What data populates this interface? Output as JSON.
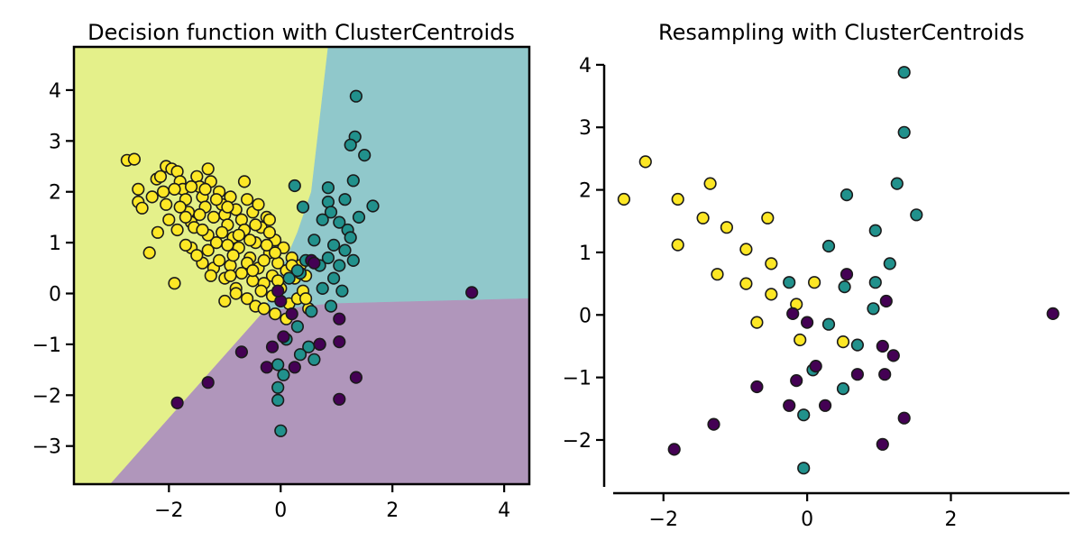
{
  "colors": {
    "class_yellow": "#fde725",
    "class_teal": "#21918c",
    "class_purple": "#440154",
    "region_yellow": "#e4f08a",
    "region_teal": "#90c8cb",
    "region_purple": "#b096bb",
    "edge": "#1a1a1a"
  },
  "chart_data": [
    {
      "type": "scatter",
      "title": "Decision function with ClusterCentroids",
      "xlim": [
        -3.7,
        4.45
      ],
      "ylim": [
        -3.75,
        4.85
      ],
      "xticks": [
        -2,
        0,
        2,
        4
      ],
      "yticks": [
        -3,
        -2,
        -1,
        0,
        1,
        2,
        3,
        4
      ],
      "xticklabels": [
        "−2",
        "0",
        "2",
        "4"
      ],
      "yticklabels": [
        "−3",
        "−2",
        "−1",
        "0",
        "1",
        "2",
        "3",
        "4"
      ],
      "frame": "box",
      "grid": false,
      "background_regions": [
        {
          "color": "region_yellow",
          "polygon": [
            [
              -3.7,
              4.85
            ],
            [
              0.85,
              4.85
            ],
            [
              0.55,
              2.0
            ],
            [
              0.3,
              1.2
            ],
            [
              -0.3,
              -0.35
            ],
            [
              -3.05,
              -3.75
            ],
            [
              -3.7,
              -3.75
            ]
          ]
        },
        {
          "color": "region_teal",
          "polygon": [
            [
              0.85,
              4.85
            ],
            [
              4.45,
              4.85
            ],
            [
              4.45,
              -0.1
            ],
            [
              0.9,
              -0.2
            ],
            [
              -0.3,
              -0.35
            ],
            [
              0.3,
              1.2
            ],
            [
              0.55,
              2.0
            ]
          ]
        },
        {
          "color": "region_purple",
          "polygon": [
            [
              -0.3,
              -0.35
            ],
            [
              0.9,
              -0.2
            ],
            [
              4.45,
              -0.1
            ],
            [
              4.45,
              -3.75
            ],
            [
              -3.05,
              -3.75
            ]
          ]
        }
      ],
      "series": [
        {
          "color": "class_yellow",
          "points": [
            [
              -2.75,
              2.62
            ],
            [
              -2.62,
              2.64
            ],
            [
              -2.55,
              2.05
            ],
            [
              -2.55,
              1.8
            ],
            [
              -2.48,
              1.68
            ],
            [
              -2.3,
              1.9
            ],
            [
              -2.22,
              2.25
            ],
            [
              -2.15,
              2.3
            ],
            [
              -2.1,
              2.0
            ],
            [
              -2.35,
              0.8
            ],
            [
              -2.2,
              1.2
            ],
            [
              -2.05,
              2.5
            ],
            [
              -1.95,
              2.45
            ],
            [
              -1.85,
              2.4
            ],
            [
              -1.8,
              2.2
            ],
            [
              -1.75,
              2.05
            ],
            [
              -1.7,
              1.85
            ],
            [
              -1.65,
              1.6
            ],
            [
              -1.6,
              1.4
            ],
            [
              -1.55,
              1.3
            ],
            [
              -1.5,
              2.3
            ],
            [
              -1.45,
              2.1
            ],
            [
              -1.4,
              1.9
            ],
            [
              -1.35,
              1.7
            ],
            [
              -1.3,
              2.45
            ],
            [
              -1.25,
              2.2
            ],
            [
              -1.2,
              1.5
            ],
            [
              -1.15,
              1.0
            ],
            [
              -1.1,
              2.0
            ],
            [
              -1.05,
              1.75
            ],
            [
              -1.0,
              1.55
            ],
            [
              -0.95,
              1.35
            ],
            [
              -0.9,
              1.9
            ],
            [
              -0.85,
              1.1
            ],
            [
              -0.8,
              1.65
            ],
            [
              -0.75,
              0.9
            ],
            [
              -0.7,
              1.45
            ],
            [
              -0.65,
              1.25
            ],
            [
              -0.6,
              1.85
            ],
            [
              -0.55,
              0.7
            ],
            [
              -0.5,
              1.6
            ],
            [
              -0.45,
              1.0
            ],
            [
              -0.4,
              0.5
            ],
            [
              -0.35,
              1.3
            ],
            [
              -0.3,
              0.2
            ],
            [
              -0.25,
              1.5
            ],
            [
              -0.2,
              0.8
            ],
            [
              -0.15,
              0.35
            ],
            [
              -0.1,
              1.05
            ],
            [
              -0.05,
              0.6
            ],
            [
              0.0,
              0.1
            ],
            [
              0.05,
              0.9
            ],
            [
              0.1,
              0.45
            ],
            [
              0.15,
              -0.2
            ],
            [
              0.2,
              0.7
            ],
            [
              0.25,
              0.3
            ],
            [
              0.3,
              -0.1
            ],
            [
              0.35,
              0.55
            ],
            [
              0.4,
              0.05
            ],
            [
              0.5,
              -0.3
            ],
            [
              -1.9,
              0.2
            ],
            [
              -1.6,
              0.9
            ],
            [
              -1.4,
              0.6
            ],
            [
              -1.2,
              0.5
            ],
            [
              -1.0,
              0.3
            ],
            [
              -0.8,
              0.1
            ],
            [
              -0.6,
              -0.1
            ],
            [
              -0.45,
              -0.25
            ],
            [
              -0.3,
              -0.3
            ],
            [
              -0.1,
              -0.4
            ],
            [
              0.1,
              -0.5
            ],
            [
              -1.7,
              0.95
            ],
            [
              -1.5,
              0.75
            ],
            [
              -1.3,
              0.85
            ],
            [
              -1.1,
              0.65
            ],
            [
              -0.9,
              0.55
            ],
            [
              -0.7,
              0.4
            ],
            [
              -0.5,
              0.25
            ],
            [
              -0.35,
              0.05
            ],
            [
              -0.15,
              -0.05
            ],
            [
              -2.0,
              1.45
            ],
            [
              -1.85,
              1.25
            ],
            [
              -1.3,
              1.15
            ],
            [
              -1.05,
              1.2
            ],
            [
              -0.95,
              0.95
            ],
            [
              -0.75,
              1.15
            ],
            [
              -0.55,
              1.05
            ],
            [
              -0.25,
              0.95
            ],
            [
              -0.2,
              1.2
            ],
            [
              -0.6,
              0.6
            ],
            [
              -0.85,
              0.75
            ],
            [
              -1.15,
              1.85
            ],
            [
              -0.65,
              2.2
            ],
            [
              -0.4,
              1.75
            ],
            [
              -0.2,
              1.45
            ],
            [
              -1.45,
              1.55
            ],
            [
              -2.05,
              1.75
            ],
            [
              -1.8,
              1.7
            ],
            [
              -1.6,
              2.1
            ],
            [
              -0.3,
              0.65
            ],
            [
              0.45,
              0.35
            ],
            [
              -0.05,
              0.25
            ],
            [
              -0.5,
              0.45
            ],
            [
              -0.8,
              0.0
            ],
            [
              -1.0,
              -0.15
            ],
            [
              -0.9,
              0.35
            ],
            [
              -1.25,
              0.35
            ],
            [
              -1.4,
              1.25
            ],
            [
              -1.7,
              1.5
            ],
            [
              -1.9,
              2.05
            ],
            [
              -1.35,
              2.05
            ],
            [
              -0.95,
              1.7
            ],
            [
              -0.45,
              1.35
            ],
            [
              -0.1,
              0.8
            ],
            [
              0.2,
              0.55
            ],
            [
              0.45,
              -0.1
            ]
          ]
        },
        {
          "color": "class_teal",
          "points": [
            [
              1.35,
              3.88
            ],
            [
              1.33,
              3.08
            ],
            [
              1.25,
              2.92
            ],
            [
              1.5,
              2.72
            ],
            [
              1.3,
              2.22
            ],
            [
              0.25,
              2.12
            ],
            [
              0.85,
              2.08
            ],
            [
              1.15,
              1.85
            ],
            [
              0.85,
              1.8
            ],
            [
              0.4,
              1.7
            ],
            [
              1.65,
              1.72
            ],
            [
              0.9,
              1.6
            ],
            [
              0.75,
              1.45
            ],
            [
              1.05,
              1.4
            ],
            [
              1.4,
              1.5
            ],
            [
              1.2,
              1.25
            ],
            [
              1.25,
              1.1
            ],
            [
              0.6,
              1.05
            ],
            [
              0.95,
              0.95
            ],
            [
              0.85,
              0.7
            ],
            [
              1.15,
              0.85
            ],
            [
              1.05,
              0.55
            ],
            [
              0.7,
              0.55
            ],
            [
              0.35,
              0.4
            ],
            [
              0.95,
              0.3
            ],
            [
              0.75,
              0.1
            ],
            [
              1.1,
              0.05
            ],
            [
              0.9,
              -0.25
            ],
            [
              0.55,
              -0.35
            ],
            [
              0.3,
              -0.65
            ],
            [
              0.1,
              -0.9
            ],
            [
              -0.05,
              -1.4
            ],
            [
              0.5,
              -1.05
            ],
            [
              0.7,
              -1.0
            ],
            [
              0.35,
              -1.2
            ],
            [
              0.6,
              -1.3
            ],
            [
              0.05,
              -1.6
            ],
            [
              -0.05,
              -1.85
            ],
            [
              -0.05,
              -2.1
            ],
            [
              0.0,
              -2.7
            ],
            [
              0.45,
              0.65
            ],
            [
              0.3,
              0.45
            ],
            [
              0.15,
              0.3
            ],
            [
              1.3,
              0.65
            ]
          ]
        },
        {
          "color": "class_purple",
          "points": [
            [
              3.42,
              0.02
            ],
            [
              -1.85,
              -2.15
            ],
            [
              -1.3,
              -1.75
            ],
            [
              -0.7,
              -1.15
            ],
            [
              -0.25,
              -1.45
            ],
            [
              -0.15,
              -1.05
            ],
            [
              0.05,
              -0.85
            ],
            [
              0.25,
              -1.45
            ],
            [
              0.7,
              -1.0
            ],
            [
              1.05,
              -0.5
            ],
            [
              1.05,
              -0.95
            ],
            [
              1.05,
              -2.08
            ],
            [
              1.35,
              -1.65
            ],
            [
              0.55,
              0.65
            ],
            [
              0.0,
              -0.15
            ],
            [
              0.6,
              0.6
            ],
            [
              0.2,
              -0.4
            ],
            [
              -0.05,
              0.05
            ]
          ]
        }
      ]
    },
    {
      "type": "scatter",
      "title": "Resampling with ClusterCentroids",
      "xlim": [
        -2.8,
        3.7
      ],
      "ylim": [
        -2.75,
        4.2
      ],
      "xticks": [
        -2,
        0,
        2
      ],
      "yticks": [
        -2,
        -1,
        0,
        1,
        2,
        3,
        4
      ],
      "xticklabels": [
        "−2",
        "0",
        "2"
      ],
      "yticklabels": [
        "−2",
        "−1",
        "0",
        "1",
        "2",
        "3",
        "4"
      ],
      "frame": "left-bottom-offset",
      "grid": false,
      "series": [
        {
          "color": "class_yellow",
          "points": [
            [
              -2.55,
              1.85
            ],
            [
              -2.25,
              2.45
            ],
            [
              -1.8,
              1.85
            ],
            [
              -1.35,
              2.1
            ],
            [
              -1.8,
              1.12
            ],
            [
              -1.45,
              1.55
            ],
            [
              -1.12,
              1.4
            ],
            [
              -1.25,
              0.65
            ],
            [
              -0.85,
              1.05
            ],
            [
              -0.55,
              1.55
            ],
            [
              -0.5,
              0.82
            ],
            [
              -0.85,
              0.5
            ],
            [
              -0.5,
              0.33
            ],
            [
              -0.15,
              0.17
            ],
            [
              0.1,
              0.52
            ],
            [
              -0.7,
              -0.12
            ],
            [
              -0.1,
              -0.4
            ],
            [
              0.5,
              -0.43
            ]
          ]
        },
        {
          "color": "class_teal",
          "points": [
            [
              1.35,
              3.88
            ],
            [
              1.35,
              2.92
            ],
            [
              1.25,
              2.1
            ],
            [
              1.52,
              1.6
            ],
            [
              0.55,
              1.92
            ],
            [
              0.95,
              1.35
            ],
            [
              0.3,
              1.1
            ],
            [
              1.15,
              0.82
            ],
            [
              0.95,
              0.52
            ],
            [
              -0.25,
              0.52
            ],
            [
              0.52,
              0.45
            ],
            [
              0.92,
              0.1
            ],
            [
              0.3,
              -0.15
            ],
            [
              0.7,
              -0.48
            ],
            [
              0.08,
              -0.88
            ],
            [
              0.5,
              -1.18
            ],
            [
              -0.05,
              -1.6
            ],
            [
              -0.05,
              -2.45
            ]
          ]
        },
        {
          "color": "class_purple",
          "points": [
            [
              3.42,
              0.02
            ],
            [
              -1.85,
              -2.15
            ],
            [
              -1.3,
              -1.75
            ],
            [
              -0.7,
              -1.15
            ],
            [
              -0.25,
              -1.45
            ],
            [
              -0.15,
              -1.05
            ],
            [
              -0.2,
              0.02
            ],
            [
              0.0,
              -0.12
            ],
            [
              0.12,
              -0.82
            ],
            [
              0.25,
              -1.45
            ],
            [
              0.7,
              -0.95
            ],
            [
              0.55,
              0.65
            ],
            [
              1.1,
              0.22
            ],
            [
              1.05,
              -0.5
            ],
            [
              1.2,
              -0.65
            ],
            [
              1.08,
              -0.95
            ],
            [
              1.05,
              -2.07
            ],
            [
              1.35,
              -1.65
            ]
          ]
        }
      ]
    }
  ]
}
